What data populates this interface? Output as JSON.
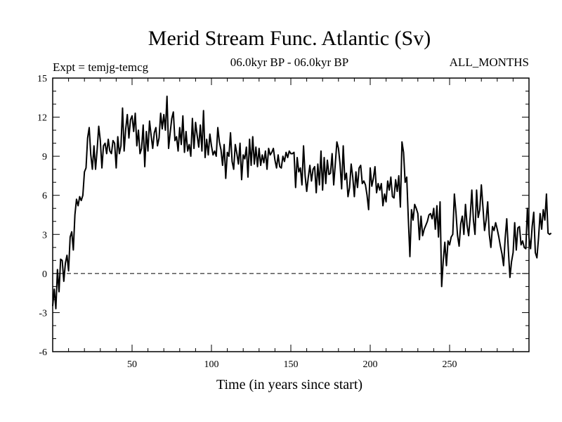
{
  "chart_data": {
    "type": "line",
    "title": "Merid Stream Func. Atlantic (Sv)",
    "subtitle_left": "Expt = temjg-temcg",
    "subtitle_center": "06.0kyr BP - 06.0kyr BP",
    "subtitle_right": "ALL_MONTHS",
    "xlabel": "Time (in years since start)",
    "ylabel": "",
    "xlim": [
      0,
      300
    ],
    "ylim": [
      -6,
      15
    ],
    "xticks": [
      50,
      100,
      150,
      200,
      250
    ],
    "yticks": [
      -6,
      -3,
      0,
      3,
      6,
      9,
      12,
      15
    ],
    "reference_line": {
      "y": 0,
      "style": "dashed"
    },
    "series": [
      {
        "name": "Merid Stream Func. Atlantic",
        "x_start": 0,
        "x_step": 1,
        "values": [
          -2.5,
          -1.2,
          -2.7,
          0.3,
          -1.4,
          1.1,
          1.0,
          -0.6,
          0.8,
          1.4,
          0.2,
          2.8,
          3.2,
          1.8,
          4.5,
          5.7,
          5.2,
          5.9,
          5.6,
          6.0,
          7.8,
          8.1,
          10.4,
          11.2,
          9.1,
          8.0,
          9.8,
          8.0,
          9.5,
          11.3,
          10.2,
          8.1,
          9.8,
          10.0,
          9.2,
          10.3,
          9.4,
          9.2,
          10.2,
          10.0,
          8.1,
          10.5,
          9.2,
          9.8,
          12.7,
          9.4,
          11.1,
          12.2,
          10.4,
          11.8,
          12.1,
          10.9,
          12.3,
          9.8,
          11.0,
          9.2,
          9.6,
          11.4,
          8.2,
          10.9,
          9.4,
          11.7,
          10.6,
          9.6,
          10.8,
          11.2,
          9.8,
          10.4,
          12.3,
          11.1,
          12.2,
          11.0,
          13.6,
          9.6,
          10.8,
          11.9,
          12.4,
          10.2,
          10.5,
          9.4,
          11.2,
          9.9,
          12.1,
          9.3,
          10.9,
          9.4,
          9.9,
          9.0,
          11.9,
          9.6,
          11.6,
          10.6,
          9.7,
          11.4,
          9.4,
          12.5,
          8.9,
          10.3,
          9.1,
          10.7,
          9.8,
          9.1,
          9.4,
          9.0,
          11.2,
          10.1,
          9.5,
          8.3,
          9.9,
          7.3,
          9.3,
          9.0,
          10.8,
          8.6,
          8.0,
          9.9,
          9.2,
          8.4,
          10.0,
          7.2,
          9.1,
          8.8,
          9.7,
          7.4,
          10.3,
          8.3,
          10.5,
          8.4,
          9.7,
          8.2,
          9.6,
          8.3,
          9.1,
          8.5,
          9.4,
          8.0,
          9.6,
          9.1,
          9.3,
          9.6,
          8.7,
          8.1,
          9.1,
          8.2,
          8.1,
          9.0,
          8.6,
          9.3,
          8.9,
          9.4,
          9.2,
          9.2,
          9.3,
          6.6,
          8.9,
          7.8,
          8.1,
          6.8,
          9.8,
          7.5,
          6.3,
          7.4,
          8.3,
          7.1,
          8.0,
          8.2,
          6.2,
          8.4,
          6.8,
          9.4,
          6.4,
          8.9,
          6.9,
          8.7,
          7.6,
          7.7,
          9.2,
          6.8,
          8.4,
          10.1,
          9.6,
          8.4,
          6.5,
          9.8,
          7.2,
          7.7,
          5.9,
          6.6,
          8.4,
          7.4,
          5.9,
          7.8,
          6.6,
          8.1,
          8.3,
          6.9,
          7.1,
          6.8,
          6.0,
          4.9,
          8.1,
          6.7,
          7.3,
          8.2,
          6.2,
          6.9,
          6.4,
          6.9,
          5.2,
          6.1,
          5.5,
          7.1,
          6.4,
          7.4,
          5.9,
          5.8,
          7.2,
          6.3,
          7.5,
          5.1,
          10.1,
          9.3,
          7.0,
          7.4,
          4.2,
          1.3,
          4.9,
          4.1,
          5.3,
          5.0,
          4.6,
          2.6,
          4.4,
          2.9,
          3.4,
          3.7,
          4.0,
          4.5,
          4.6,
          4.2,
          5.0,
          3.4,
          5.2,
          2.8,
          5.5,
          -1.0,
          1.0,
          2.4,
          0.6,
          2.5,
          2.2,
          2.8,
          3.0,
          6.1,
          4.7,
          2.9,
          2.1,
          3.8,
          4.4,
          3.0,
          5.3,
          3.7,
          2.9,
          4.4,
          6.4,
          4.1,
          3.0,
          6.4,
          4.3,
          4.9,
          6.8,
          5.1,
          3.3,
          4.1,
          5.5,
          3.0,
          2.0,
          3.6,
          3.3,
          3.9,
          3.4,
          2.8,
          2.1,
          1.5,
          0.6,
          2.7,
          4.2,
          1.8,
          -0.3,
          0.9,
          1.6,
          3.9,
          1.8,
          3.5,
          3.6,
          2.2,
          2.5,
          2.0,
          1.9,
          5.0,
          2.8,
          1.9,
          3.6,
          4.7,
          1.6,
          1.2,
          2.7,
          4.6,
          3.4,
          4.9,
          4.1,
          6.1,
          3.1,
          3.0,
          3.1
        ]
      }
    ]
  }
}
